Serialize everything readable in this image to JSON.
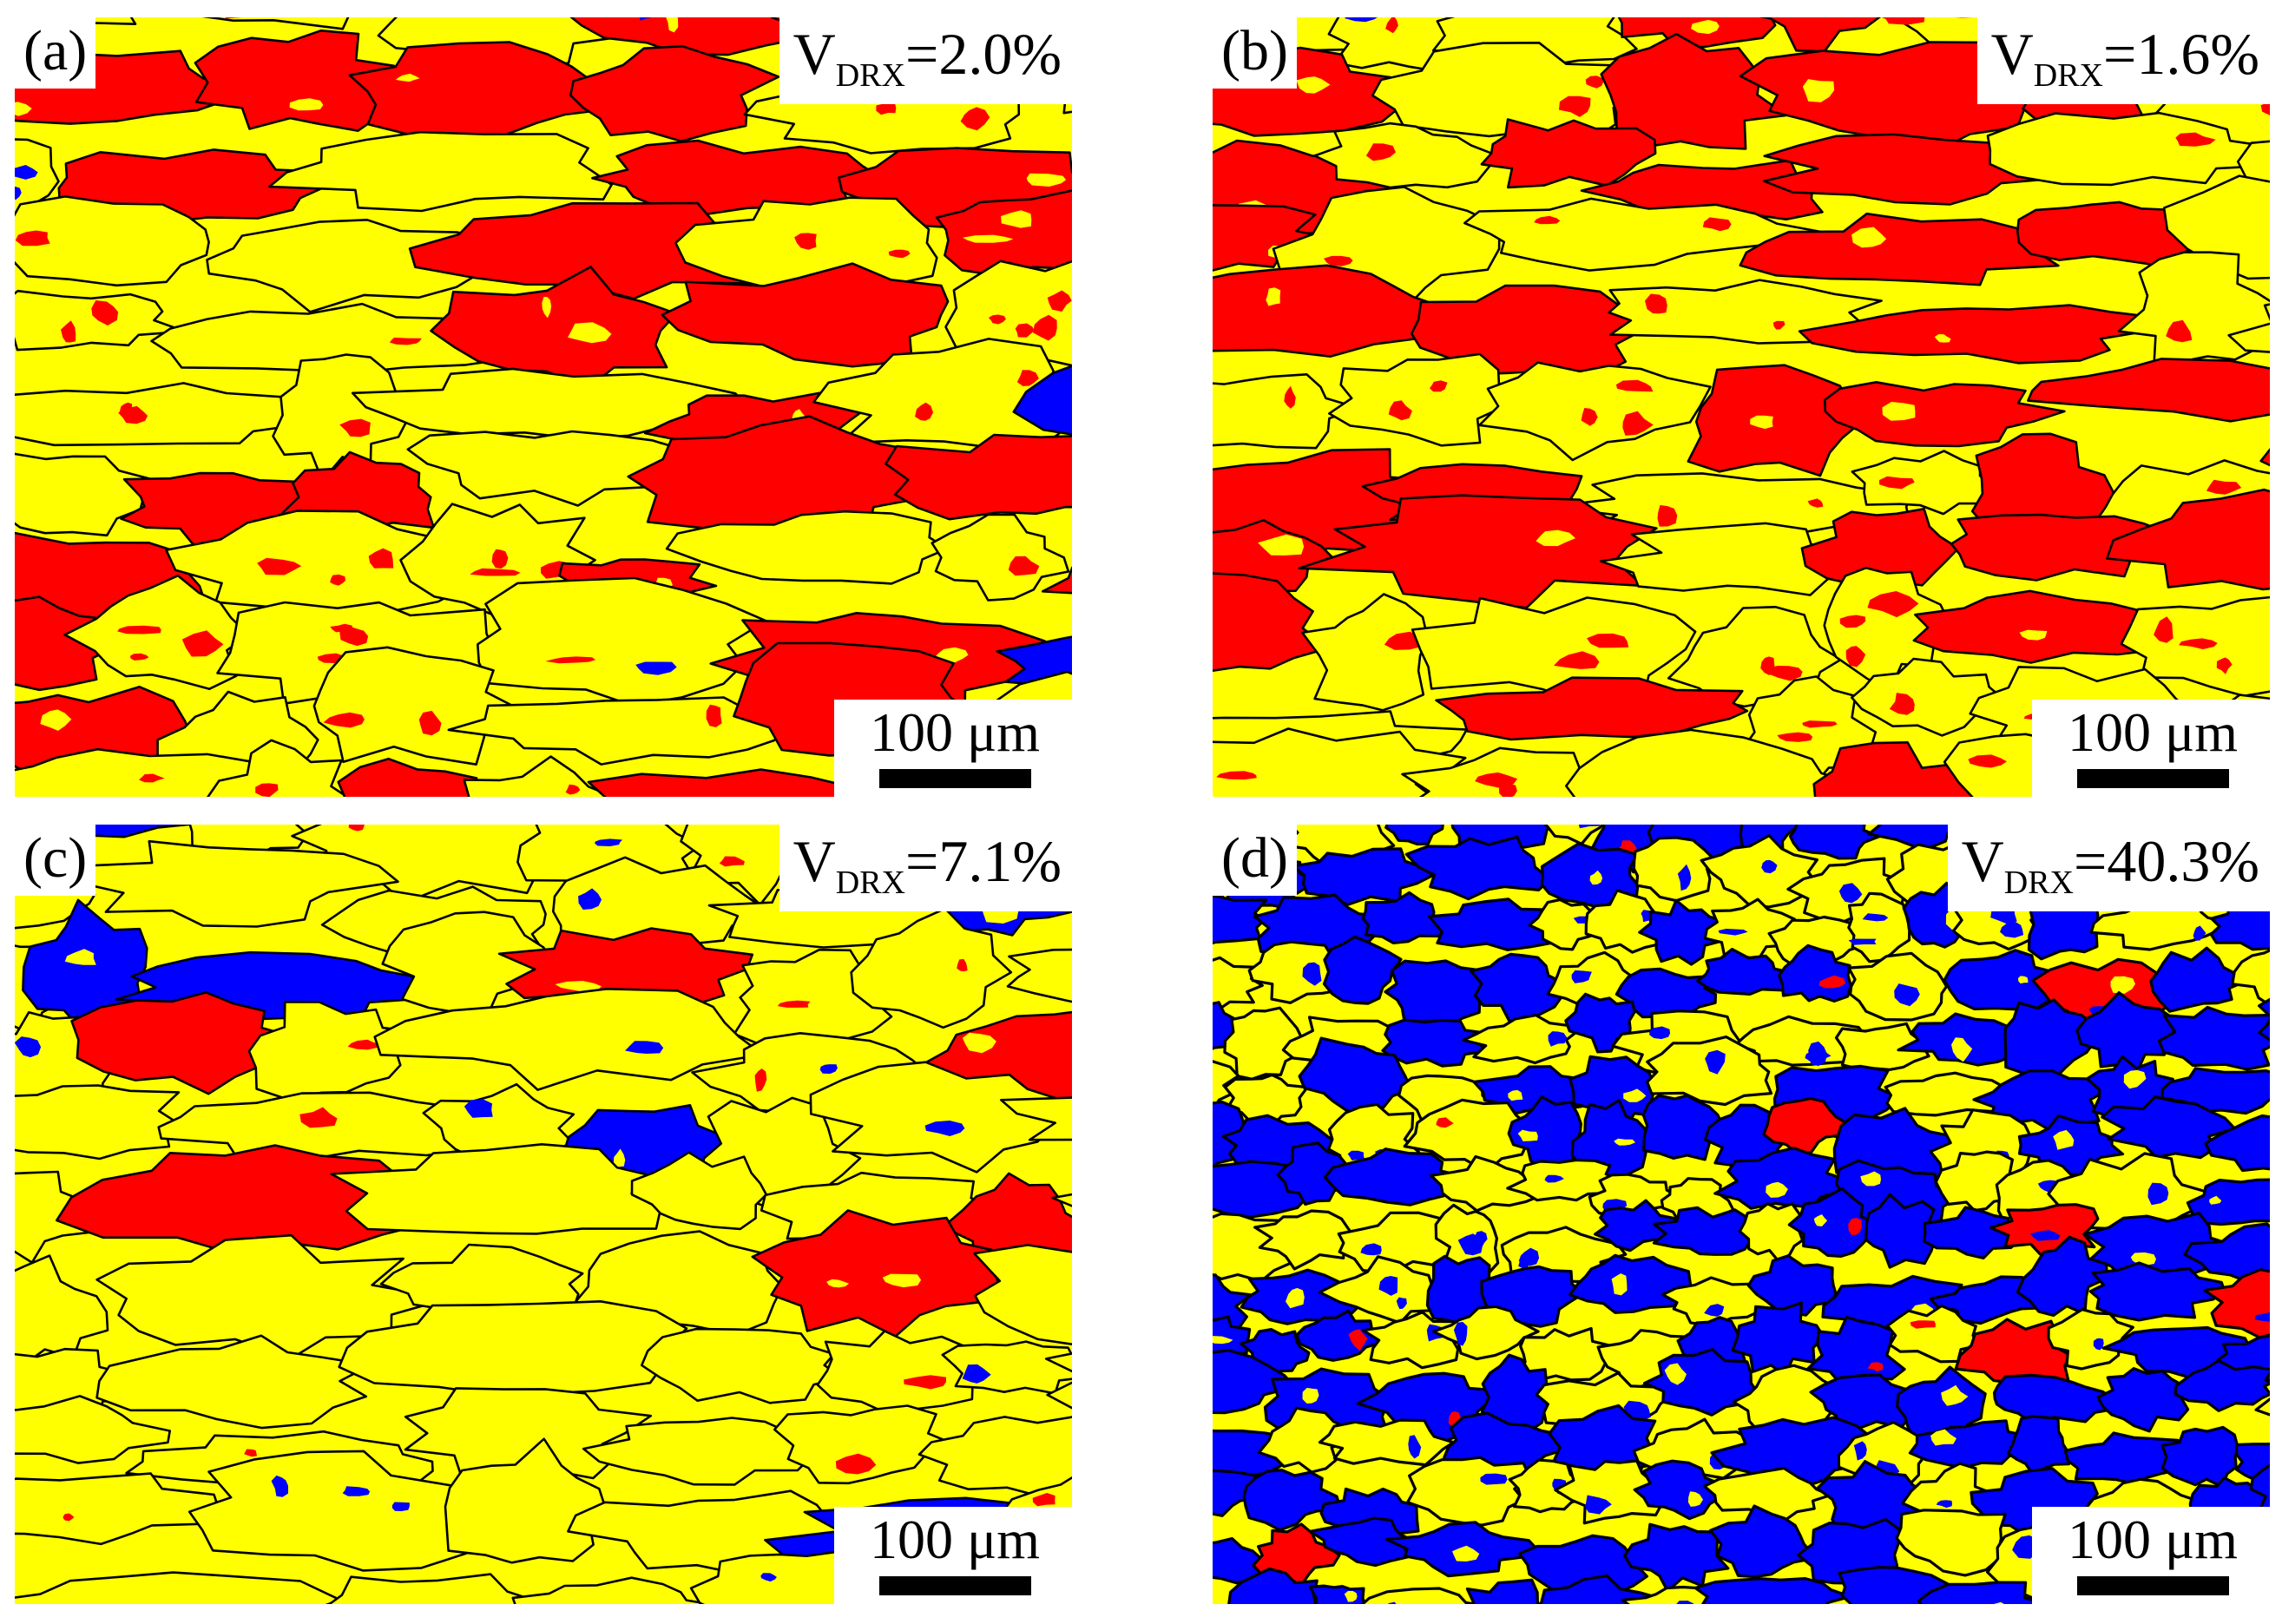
{
  "panels": [
    {
      "id": "a",
      "label": "(a)",
      "v_main": "V",
      "v_sub": "DRX",
      "v_value": "=2.0%",
      "scale_text": "100 μm",
      "red_fraction": 0.45,
      "blue_fraction": 0.02,
      "seed": 11
    },
    {
      "id": "b",
      "label": "(b)",
      "v_main": "V",
      "v_sub": "DRX",
      "v_value": "=1.6%",
      "scale_text": "100 μm",
      "red_fraction": 0.45,
      "blue_fraction": 0.016,
      "seed": 23
    },
    {
      "id": "c",
      "label": "(c)",
      "v_main": "V",
      "v_sub": "DRX",
      "v_value": "=7.1%",
      "scale_text": "100 μm",
      "red_fraction": 0.12,
      "blue_fraction": 0.071,
      "seed": 37
    },
    {
      "id": "d",
      "label": "(d)",
      "v_main": "V",
      "v_sub": "DRX",
      "v_value": "=40.3%",
      "scale_text": "100 μm",
      "red_fraction": 0.03,
      "blue_fraction": 0.403,
      "seed": 51
    }
  ],
  "colors": {
    "deformed": "#ff0000",
    "substructured": "#ffff00",
    "recrystallized": "#0000ff",
    "boundary": "#000000"
  }
}
